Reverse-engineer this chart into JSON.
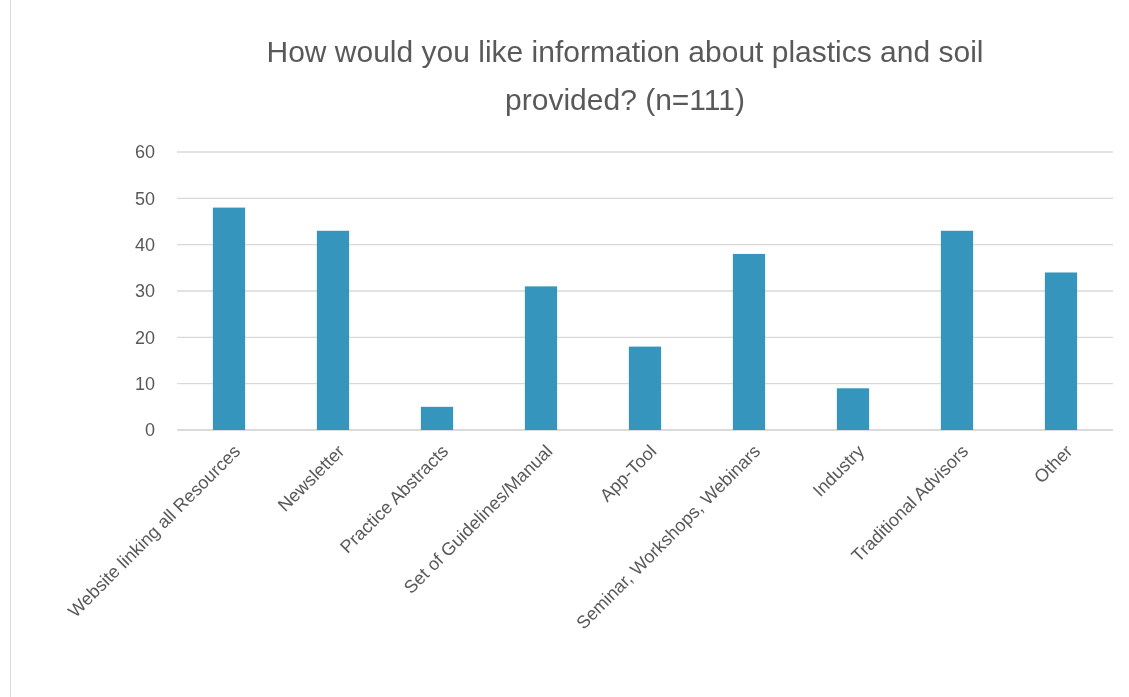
{
  "chart_data": {
    "type": "bar",
    "title": "How would you like information about plastics and soil provided? (n=111)",
    "categories": [
      "Website linking all Resources",
      "Newsletter",
      "Practice Abstracts",
      "Set of Guidelines/Manual",
      "App-Tool",
      "Seminar, Workshops, Webinars",
      "Industry",
      "Traditional Advisors",
      "Other"
    ],
    "values": [
      48,
      43,
      5,
      31,
      18,
      38,
      9,
      43,
      34
    ],
    "color": "#3595bc",
    "ylim": [
      0,
      60
    ],
    "yticks": [
      0,
      10,
      20,
      30,
      40,
      50,
      60
    ],
    "grid": "y"
  }
}
